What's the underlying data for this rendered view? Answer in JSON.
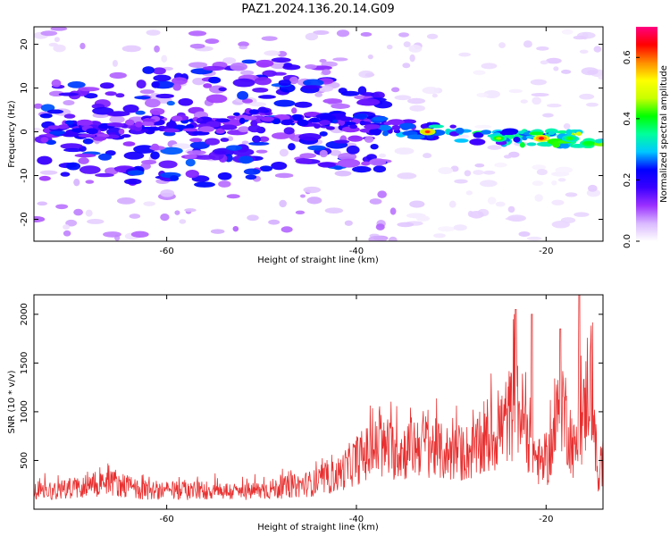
{
  "figure": {
    "title": "PAZ1.2024.136.20.14.G09"
  },
  "chart_data": [
    {
      "type": "heatmap",
      "xlabel": "Height of straight line (km)",
      "ylabel": "Frequency (Hz)",
      "xlim": [
        -74,
        -14
      ],
      "ylim": [
        -25,
        24
      ],
      "xticks": [
        -60,
        -40,
        -20
      ],
      "yticks": [
        -20,
        -10,
        0,
        10,
        20
      ],
      "colorbar": {
        "label": "Normalized spectral amplitude",
        "range": [
          0.0,
          0.7
        ],
        "ticks": [
          0.0,
          0.2,
          0.4,
          0.6
        ],
        "colors": [
          "#ffffff",
          "#d9b8ff",
          "#9b30ff",
          "#3a00ff",
          "#0000ff",
          "#00c8ff",
          "#00ff9c",
          "#00ff00",
          "#c8ff00",
          "#ffff00",
          "#ff8c00",
          "#ff0000",
          "#ff0080"
        ]
      },
      "ridge": {
        "description_points": [
          [
            -72,
            1
          ],
          [
            -66,
            0
          ],
          [
            -60,
            2
          ],
          [
            -55,
            1
          ],
          [
            -50,
            4
          ],
          [
            -45,
            3
          ],
          [
            -40,
            2
          ],
          [
            -35,
            1
          ],
          [
            -32,
            0
          ],
          [
            -28,
            -1
          ],
          [
            -25,
            -1.5
          ],
          [
            -20,
            -1.5
          ],
          [
            -16,
            -1.5
          ],
          [
            -14,
            -1
          ]
        ],
        "peak_amplitudes": [
          [
            -32.5,
            0,
            0.62
          ],
          [
            -20.5,
            -1.5,
            0.65
          ],
          [
            -25,
            -1.5,
            0.45
          ],
          [
            -17.5,
            -1.5,
            0.42
          ]
        ]
      },
      "grid": false
    },
    {
      "type": "line",
      "xlabel": "Height of straight line (km)",
      "ylabel": "SNR (10 * v/v)",
      "xlim": [
        -74,
        -14
      ],
      "ylim": [
        0,
        2200
      ],
      "xticks": [
        -60,
        -40,
        -20
      ],
      "yticks": [
        500,
        1000,
        1500,
        2000
      ],
      "line_color": "#e83030",
      "envelope": [
        [
          -74,
          250
        ],
        [
          -70,
          300
        ],
        [
          -66,
          400
        ],
        [
          -63,
          280
        ],
        [
          -60,
          260
        ],
        [
          -55,
          270
        ],
        [
          -52,
          240
        ],
        [
          -48,
          300
        ],
        [
          -44,
          380
        ],
        [
          -42,
          480
        ],
        [
          -40,
          700
        ],
        [
          -38,
          850
        ],
        [
          -35,
          820
        ],
        [
          -33,
          950
        ],
        [
          -31,
          800
        ],
        [
          -29,
          780
        ],
        [
          -27,
          850
        ],
        [
          -25,
          1100
        ],
        [
          -24,
          1300
        ],
        [
          -23,
          1500
        ],
        [
          -22,
          1100
        ],
        [
          -21,
          700
        ],
        [
          -20,
          600
        ],
        [
          -19,
          1100
        ],
        [
          -18.5,
          1700
        ],
        [
          -18,
          1350
        ],
        [
          -17,
          800
        ],
        [
          -16,
          1300
        ],
        [
          -15.5,
          1900
        ],
        [
          -15,
          1400
        ],
        [
          -14.5,
          300
        ],
        [
          -14,
          700
        ]
      ],
      "notable_peaks": [
        [
          -23.2,
          2050
        ],
        [
          -16.5,
          2200
        ],
        [
          -18.5,
          1850
        ],
        [
          -21.5,
          2000
        ]
      ],
      "grid": false
    }
  ]
}
